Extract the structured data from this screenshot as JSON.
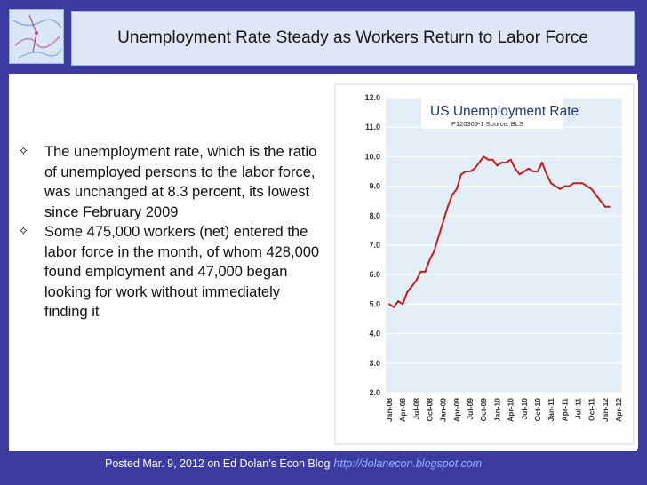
{
  "slide": {
    "title": "Unemployment Rate Steady as Workers Return to Labor Force",
    "bullets": [
      "The unemployment rate, which is the ratio of unemployed persons to the labor force, was unchanged at 8.3 percent, its lowest since February 2009",
      "Some 475,000 workers (net) entered the labor force in the month, of whom 428,000 found employment and 47,000 began looking for work without immediately finding it"
    ],
    "bullet_marker": "✧",
    "footer": {
      "text": "Posted Mar. 9, 2012 on Ed Dolan’s Econ Blog",
      "link": "http://dolanecon.blogspot.com"
    }
  },
  "colors": {
    "background": "#3b3ba1",
    "title_box": "#dfe7f6",
    "line": "#c91a1a",
    "chart_title": "#1f3a73",
    "plot_bg": "#e4eef7"
  },
  "chart_data": {
    "type": "line",
    "title": "US Unemployment Rate",
    "subtitle": "P120309-1 Source: BLS",
    "ylim": [
      2.0,
      12.0
    ],
    "yticks": [
      "2.0",
      "3.0",
      "4.0",
      "5.0",
      "6.0",
      "7.0",
      "8.0",
      "9.0",
      "10.0",
      "11.0",
      "12.0"
    ],
    "xticks": [
      "Jan-08",
      "Apr-08",
      "Jul-08",
      "Oct-08",
      "Jan-09",
      "Apr-09",
      "Jul-09",
      "Oct-09",
      "Jan-10",
      "Apr-10",
      "Jul-10",
      "Oct-10",
      "Jan-11",
      "Apr-11",
      "Jul-11",
      "Oct-11",
      "Jan-12",
      "Apr-12"
    ],
    "grid": true,
    "series": [
      {
        "values": [
          5.0,
          4.9,
          5.1,
          5.0,
          5.4,
          5.6,
          5.8,
          6.1,
          6.1,
          6.5,
          6.8,
          7.3,
          7.8,
          8.3,
          8.7,
          8.9,
          9.4,
          9.5,
          9.5,
          9.6,
          9.8,
          10.0,
          9.9,
          9.9,
          9.7,
          9.8,
          9.8,
          9.9,
          9.6,
          9.4,
          9.5,
          9.6,
          9.5,
          9.5,
          9.8,
          9.4,
          9.1,
          9.0,
          8.9,
          9.0,
          9.0,
          9.1,
          9.1,
          9.1,
          9.0,
          8.9,
          8.7,
          8.5,
          8.3,
          8.3
        ]
      }
    ]
  }
}
